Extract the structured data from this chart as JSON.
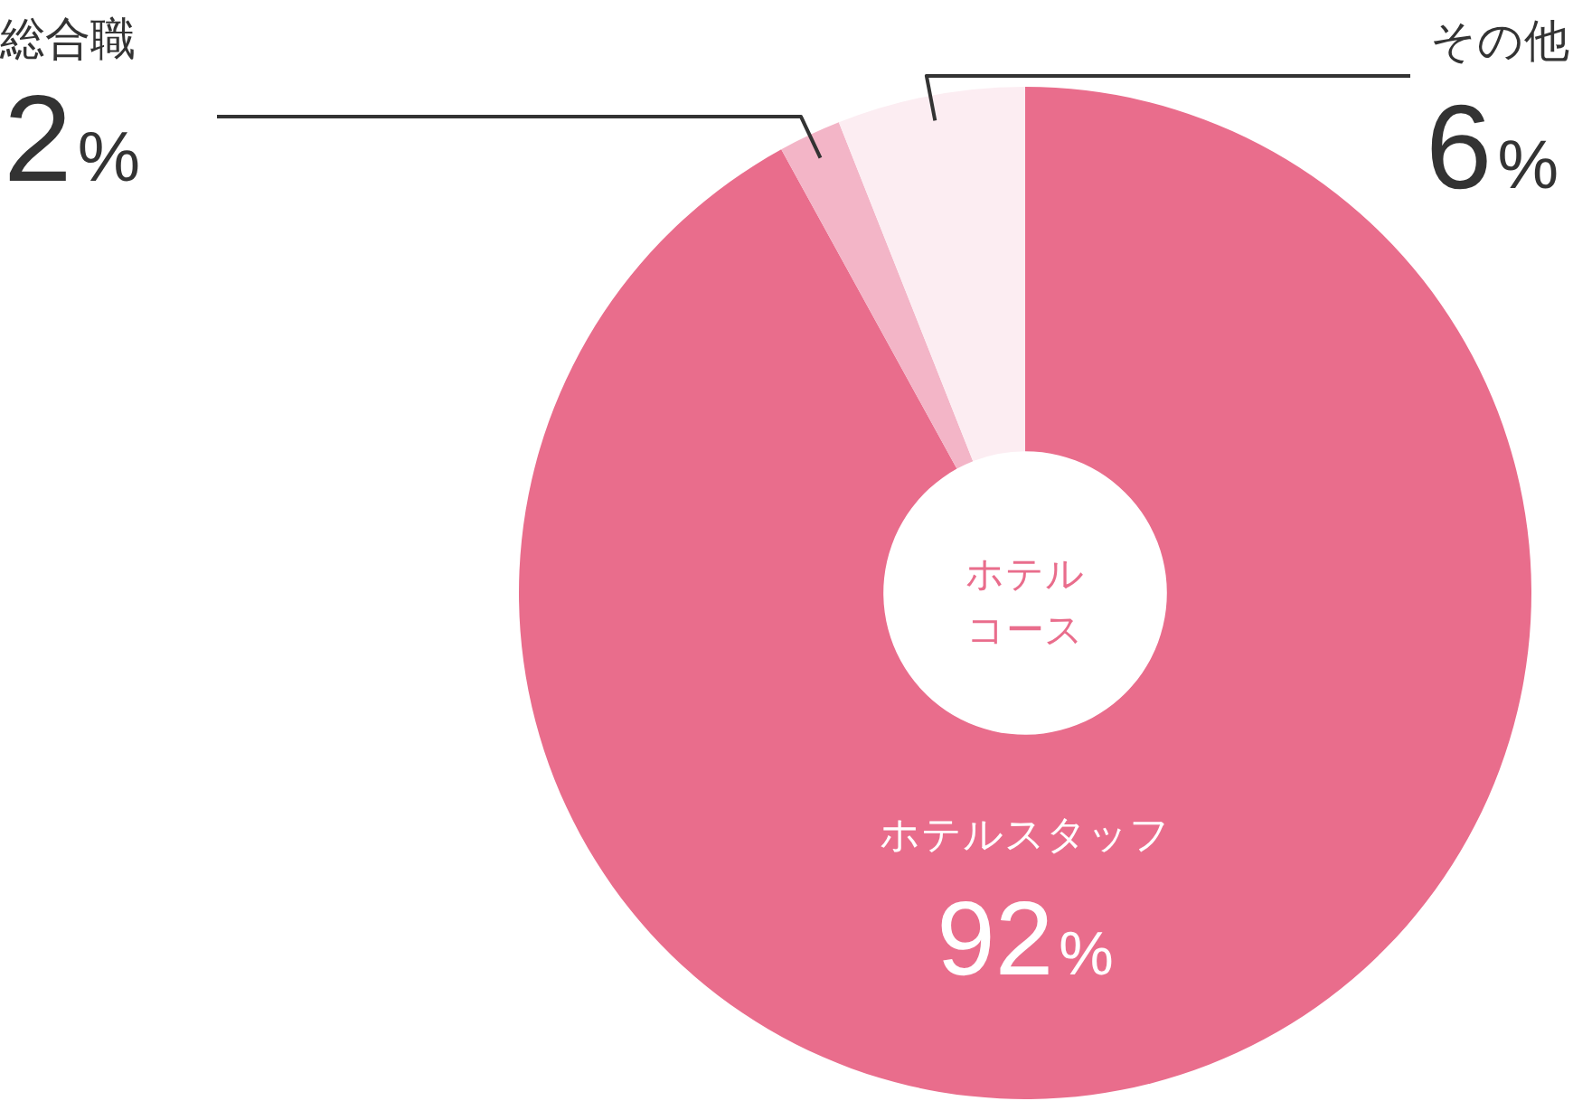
{
  "chart_data": {
    "type": "donut",
    "title": "ホテルコース",
    "categories": [
      "ホテルスタッフ",
      "総合職",
      "その他"
    ],
    "values": [
      92,
      2,
      6
    ],
    "colors": [
      "#e96d8c",
      "#f3b5c7",
      "#fcedf2"
    ],
    "value_labels": [
      "92%",
      "2%",
      "6%"
    ]
  }
}
